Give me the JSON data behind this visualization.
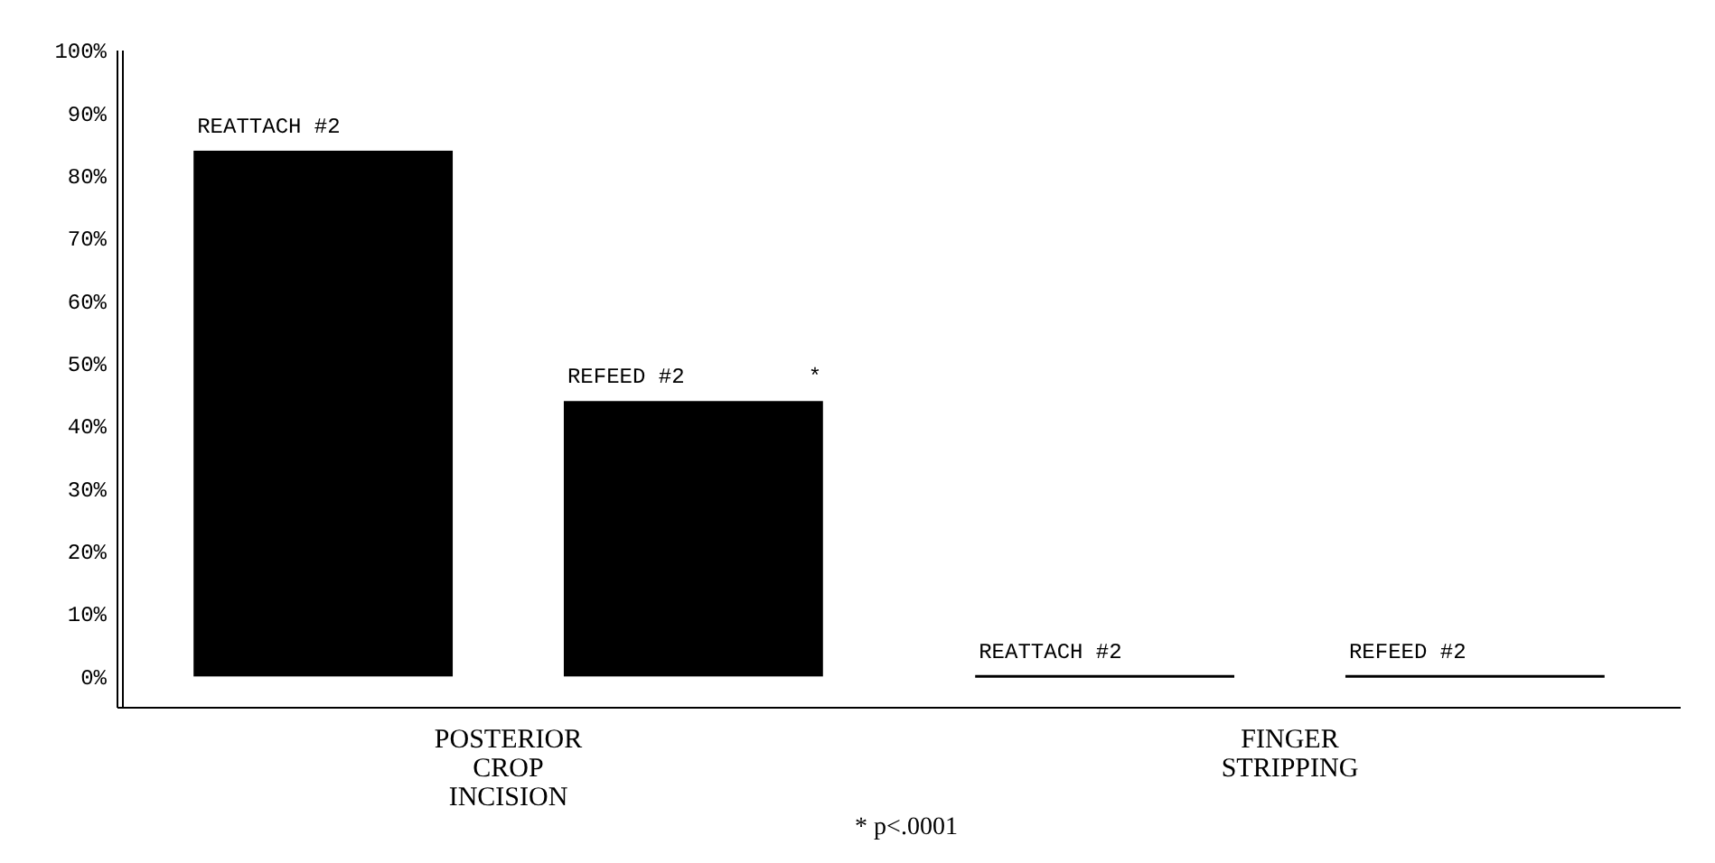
{
  "chart_data": {
    "type": "bar",
    "categories": [
      "POSTERIOR\nCROP\nINCISION",
      "FINGER\nSTRIPPING"
    ],
    "series": [
      {
        "name": "REATTACH #2",
        "color": "#000000",
        "values": [
          84,
          0
        ]
      },
      {
        "name": "REFEED #2",
        "color": "#000000",
        "values": [
          44,
          0
        ]
      }
    ],
    "ylim": [
      -5,
      100
    ],
    "yticks": [
      {
        "value": 0,
        "label": "0%"
      },
      {
        "value": 10,
        "label": "10%"
      },
      {
        "value": 20,
        "label": "20%"
      },
      {
        "value": 30,
        "label": "30%"
      },
      {
        "value": 40,
        "label": "40%"
      },
      {
        "value": 50,
        "label": "50%"
      },
      {
        "value": 60,
        "label": "60%"
      },
      {
        "value": 70,
        "label": "70%"
      },
      {
        "value": 80,
        "label": "80%"
      },
      {
        "value": 90,
        "label": "90%"
      },
      {
        "value": 100,
        "label": "100%"
      }
    ],
    "annotations": [
      "*",
      "* p<.0001"
    ],
    "grid": false,
    "legend": false
  }
}
